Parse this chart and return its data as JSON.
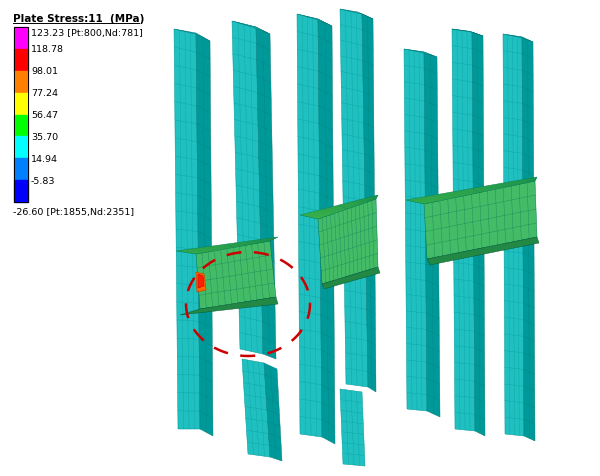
{
  "title": "Plate Stress:11  (MPa)",
  "colorbar_max_label": "123.23 [Pt:800,Nd:781]",
  "colorbar_min_label": "-26.60 [Pt:1855,Nd:2351]",
  "colorbar_values": [
    "118.78",
    "98.01",
    "77.24",
    "56.47",
    "35.70",
    "14.94",
    "-5.83"
  ],
  "colorbar_colors": [
    "#ff00ff",
    "#ff0000",
    "#ff8000",
    "#ffff00",
    "#00ff00",
    "#00ffff",
    "#0080ff",
    "#0000ff"
  ],
  "bg_color": "#ffffff",
  "circle_color": "#cc0000",
  "figsize": [
    6.0,
    4.77
  ],
  "dpi": 100,
  "teal": "#20c0c0",
  "teal_dark": "#009999",
  "teal_mid": "#15aaaa",
  "green": "#44bb66",
  "green2": "#55cc44",
  "green_dark": "#228844",
  "cyan_blue": "#22aadd"
}
